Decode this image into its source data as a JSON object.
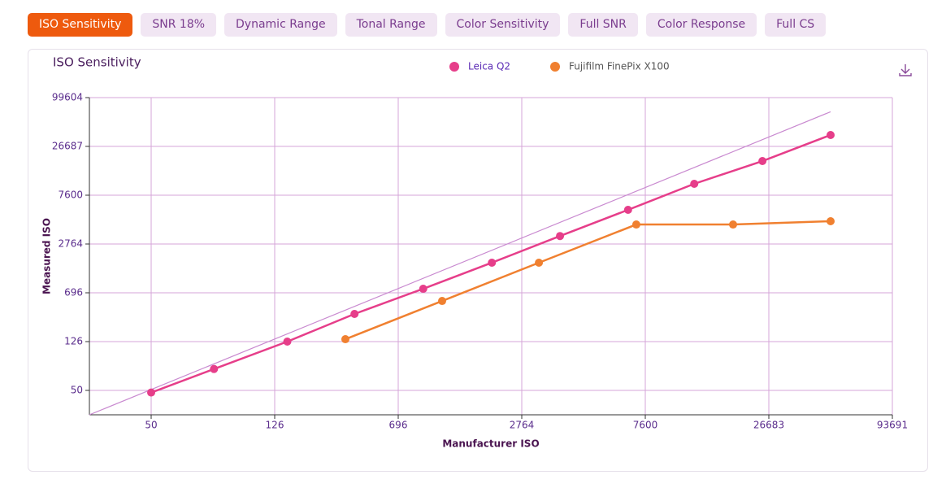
{
  "tabs": [
    "ISO Sensitivity",
    "SNR 18%",
    "Dynamic Range",
    "Tonal Range",
    "Color Sensitivity",
    "Full SNR",
    "Color Response",
    "Full CS"
  ],
  "active_tab": 0,
  "chart_data": {
    "type": "line",
    "title": "ISO Sensitivity",
    "x_label": "Manufacturer ISO",
    "y_label": "Measured ISO",
    "log_scale": true,
    "grid": true,
    "legend": "top-center",
    "xlim": [
      31.5,
      93691
    ],
    "ylim": [
      31.5,
      99604
    ],
    "xticks": [
      50,
      126,
      696,
      2764,
      7600,
      26683,
      93691
    ],
    "yticks": [
      50,
      126,
      696,
      2764,
      7600,
      26687,
      99604
    ],
    "series": [
      {
        "name": "Leica Q2",
        "color": "#e63e8a",
        "x": [
          50,
          80,
          150,
          380,
          920,
          1980,
          3780,
          6600,
          12500,
          25000,
          50000
        ],
        "values": [
          48,
          75,
          126,
          332,
          780,
          1630,
          3260,
          5610,
          10190,
          18300,
          36300
        ]
      },
      {
        "name": "Fujifilm FinePix X100",
        "color": "#f08030",
        "x": [
          335,
          1136,
          3180,
          7060,
          18550,
          50000
        ],
        "values": [
          137,
          523,
          1630,
          4140,
          4140,
          4430
        ]
      }
    ]
  }
}
